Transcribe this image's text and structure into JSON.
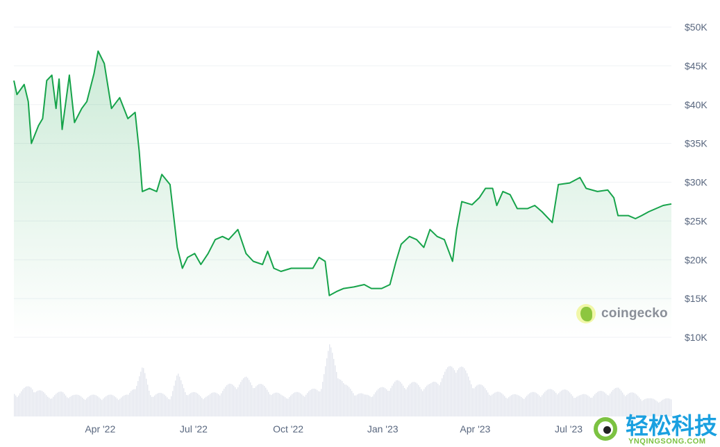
{
  "chart_data": {
    "type": "area",
    "title": "",
    "xlabel": "",
    "ylabel": "",
    "currency": "USD",
    "ylim": [
      10000,
      50000
    ],
    "xlim": [
      "2022-01-07",
      "2023-10-09"
    ],
    "grid": true,
    "y_ticks": [
      "$50K",
      "$45K",
      "$40K",
      "$35K",
      "$30K",
      "$25K",
      "$20K",
      "$15K",
      "$10K"
    ],
    "y_tick_values": [
      50000,
      45000,
      40000,
      35000,
      30000,
      25000,
      20000,
      15000,
      10000
    ],
    "x_ticks": [
      "Apr '22",
      "Jul '22",
      "Oct '22",
      "Jan '23",
      "Apr '23",
      "Jul '23"
    ],
    "x_tick_dates": [
      "2022-04-01",
      "2022-07-01",
      "2022-10-01",
      "2023-01-01",
      "2023-04-01",
      "2023-07-01"
    ],
    "colors": {
      "line": "#16a34a",
      "fill": "#16a34a",
      "volume": "#e3e6ee",
      "grid": "#eff2f5"
    },
    "series": [
      {
        "points": [
          [
            "2022-01-07",
            43100
          ],
          [
            "2022-01-10",
            41300
          ],
          [
            "2022-01-17",
            42600
          ],
          [
            "2022-01-21",
            40400
          ],
          [
            "2022-01-24",
            35000
          ],
          [
            "2022-01-31",
            37300
          ],
          [
            "2022-02-04",
            38200
          ],
          [
            "2022-02-08",
            43100
          ],
          [
            "2022-02-13",
            43800
          ],
          [
            "2022-02-17",
            39500
          ],
          [
            "2022-02-20",
            43300
          ],
          [
            "2022-02-23",
            36800
          ],
          [
            "2022-03-02",
            43800
          ],
          [
            "2022-03-07",
            37700
          ],
          [
            "2022-03-14",
            39500
          ],
          [
            "2022-03-19",
            40400
          ],
          [
            "2022-03-26",
            44000
          ],
          [
            "2022-03-30",
            46900
          ],
          [
            "2022-04-05",
            45300
          ],
          [
            "2022-04-12",
            39500
          ],
          [
            "2022-04-20",
            40900
          ],
          [
            "2022-04-28",
            38200
          ],
          [
            "2022-05-05",
            39000
          ],
          [
            "2022-05-09",
            34000
          ],
          [
            "2022-05-12",
            28800
          ],
          [
            "2022-05-19",
            29200
          ],
          [
            "2022-05-26",
            28800
          ],
          [
            "2022-05-31",
            31000
          ],
          [
            "2022-06-08",
            29700
          ],
          [
            "2022-06-15",
            21600
          ],
          [
            "2022-06-20",
            18900
          ],
          [
            "2022-06-25",
            20300
          ],
          [
            "2022-07-02",
            20800
          ],
          [
            "2022-07-08",
            19400
          ],
          [
            "2022-07-15",
            20800
          ],
          [
            "2022-07-22",
            22600
          ],
          [
            "2022-07-29",
            23000
          ],
          [
            "2022-08-04",
            22600
          ],
          [
            "2022-08-13",
            23900
          ],
          [
            "2022-08-21",
            20800
          ],
          [
            "2022-08-28",
            19800
          ],
          [
            "2022-09-06",
            19400
          ],
          [
            "2022-09-11",
            21100
          ],
          [
            "2022-09-17",
            18900
          ],
          [
            "2022-09-24",
            18500
          ],
          [
            "2022-10-04",
            18900
          ],
          [
            "2022-10-14",
            18900
          ],
          [
            "2022-10-25",
            18900
          ],
          [
            "2022-10-31",
            20300
          ],
          [
            "2022-11-06",
            19800
          ],
          [
            "2022-11-10",
            15400
          ],
          [
            "2022-11-17",
            15900
          ],
          [
            "2022-11-24",
            16300
          ],
          [
            "2022-12-04",
            16500
          ],
          [
            "2022-12-14",
            16800
          ],
          [
            "2022-12-21",
            16300
          ],
          [
            "2022-12-31",
            16300
          ],
          [
            "2023-01-08",
            16800
          ],
          [
            "2023-01-14",
            19800
          ],
          [
            "2023-01-19",
            22000
          ],
          [
            "2023-01-27",
            23000
          ],
          [
            "2023-02-03",
            22600
          ],
          [
            "2023-02-10",
            21600
          ],
          [
            "2023-02-16",
            23900
          ],
          [
            "2023-02-23",
            23000
          ],
          [
            "2023-03-02",
            22600
          ],
          [
            "2023-03-10",
            19800
          ],
          [
            "2023-03-14",
            23900
          ],
          [
            "2023-03-19",
            27500
          ],
          [
            "2023-03-29",
            27100
          ],
          [
            "2023-04-05",
            28000
          ],
          [
            "2023-04-11",
            29200
          ],
          [
            "2023-04-18",
            29200
          ],
          [
            "2023-04-22",
            27000
          ],
          [
            "2023-04-28",
            28800
          ],
          [
            "2023-05-05",
            28400
          ],
          [
            "2023-05-12",
            26600
          ],
          [
            "2023-05-22",
            26600
          ],
          [
            "2023-05-29",
            27000
          ],
          [
            "2023-06-05",
            26200
          ],
          [
            "2023-06-15",
            24800
          ],
          [
            "2023-06-21",
            29700
          ],
          [
            "2023-07-02",
            29900
          ],
          [
            "2023-07-12",
            30600
          ],
          [
            "2023-07-18",
            29200
          ],
          [
            "2023-07-29",
            28800
          ],
          [
            "2023-08-08",
            29000
          ],
          [
            "2023-08-14",
            28000
          ],
          [
            "2023-08-18",
            25700
          ],
          [
            "2023-08-28",
            25700
          ],
          [
            "2023-09-04",
            25300
          ],
          [
            "2023-09-10",
            25700
          ],
          [
            "2023-09-17",
            26200
          ],
          [
            "2023-09-24",
            26600
          ],
          [
            "2023-10-01",
            27000
          ],
          [
            "2023-10-09",
            27200
          ]
        ]
      }
    ],
    "volume_relative": [
      [
        "2022-01-10",
        0.35
      ],
      [
        "2022-01-24",
        0.45
      ],
      [
        "2022-02-08",
        0.3
      ],
      [
        "2022-02-23",
        0.35
      ],
      [
        "2022-03-07",
        0.3
      ],
      [
        "2022-03-26",
        0.3
      ],
      [
        "2022-04-12",
        0.3
      ],
      [
        "2022-04-28",
        0.3
      ],
      [
        "2022-05-12",
        0.7
      ],
      [
        "2022-05-19",
        0.35
      ],
      [
        "2022-06-08",
        0.3
      ],
      [
        "2022-06-15",
        0.6
      ],
      [
        "2022-06-25",
        0.35
      ],
      [
        "2022-07-15",
        0.3
      ],
      [
        "2022-08-04",
        0.45
      ],
      [
        "2022-08-21",
        0.55
      ],
      [
        "2022-09-11",
        0.4
      ],
      [
        "2022-09-24",
        0.3
      ],
      [
        "2022-10-14",
        0.35
      ],
      [
        "2022-10-31",
        0.4
      ],
      [
        "2022-11-10",
        1.0
      ],
      [
        "2022-11-24",
        0.45
      ],
      [
        "2022-12-14",
        0.3
      ],
      [
        "2023-01-14",
        0.5
      ],
      [
        "2023-02-16",
        0.45
      ],
      [
        "2023-03-14",
        0.8
      ],
      [
        "2023-03-29",
        0.5
      ],
      [
        "2023-04-18",
        0.35
      ],
      [
        "2023-05-12",
        0.3
      ],
      [
        "2023-06-21",
        0.4
      ],
      [
        "2023-07-12",
        0.3
      ],
      [
        "2023-08-18",
        0.4
      ],
      [
        "2023-09-17",
        0.25
      ],
      [
        "2023-10-09",
        0.25
      ]
    ]
  },
  "watermarks": {
    "coingecko": "coingecko",
    "site_cn": "轻松科技",
    "site_en": "YNQINGSONG.COM"
  }
}
